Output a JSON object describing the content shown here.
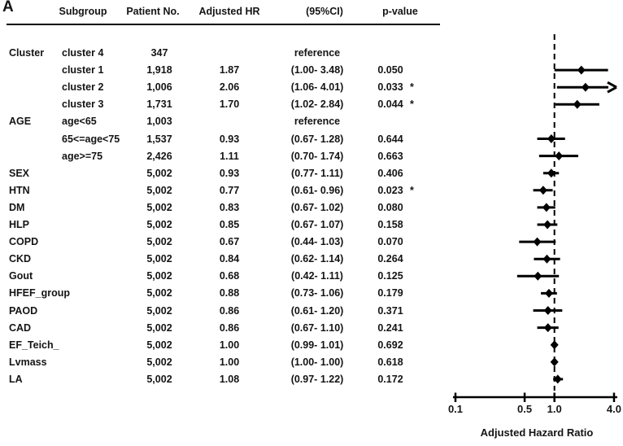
{
  "panel_label": "A",
  "table": {
    "headers": {
      "subgroup": "Subgroup",
      "patient_no": "Patient No.",
      "adjusted_hr": "Adjusted HR",
      "ci": "(95%CI)",
      "p_value": "p-value"
    },
    "rows": [
      {
        "group": "Cluster",
        "subgroup": "cluster 4",
        "n": "347",
        "hr": "",
        "ci": "reference",
        "p": "",
        "star": ""
      },
      {
        "group": "",
        "subgroup": "cluster 1",
        "n": "1,918",
        "hr": "1.87",
        "ci": "(1.00- 3.48)",
        "p": "0.050",
        "star": ""
      },
      {
        "group": "",
        "subgroup": "cluster 2",
        "n": "1,006",
        "hr": "2.06",
        "ci": "(1.06- 4.01)",
        "p": "0.033",
        "star": "*"
      },
      {
        "group": "",
        "subgroup": "cluster 3",
        "n": "1,731",
        "hr": "1.70",
        "ci": "(1.02- 2.84)",
        "p": "0.044",
        "star": "*"
      },
      {
        "group": "AGE",
        "subgroup": "age<65",
        "n": "1,003",
        "hr": "",
        "ci": "reference",
        "p": "",
        "star": ""
      },
      {
        "group": "",
        "subgroup": "65<=age<75",
        "n": "1,537",
        "hr": "0.93",
        "ci": "(0.67- 1.28)",
        "p": "0.644",
        "star": ""
      },
      {
        "group": "",
        "subgroup": "age>=75",
        "n": "2,426",
        "hr": "1.11",
        "ci": "(0.70- 1.74)",
        "p": "0.663",
        "star": ""
      },
      {
        "group": "SEX",
        "subgroup": "",
        "n": "5,002",
        "hr": "0.93",
        "ci": "(0.77- 1.11)",
        "p": "0.406",
        "star": ""
      },
      {
        "group": "HTN",
        "subgroup": "",
        "n": "5,002",
        "hr": "0.77",
        "ci": "(0.61- 0.96)",
        "p": "0.023",
        "star": "*"
      },
      {
        "group": "DM",
        "subgroup": "",
        "n": "5,002",
        "hr": "0.83",
        "ci": "(0.67- 1.02)",
        "p": "0.080",
        "star": ""
      },
      {
        "group": "HLP",
        "subgroup": "",
        "n": "5,002",
        "hr": "0.85",
        "ci": "(0.67- 1.07)",
        "p": "0.158",
        "star": ""
      },
      {
        "group": "COPD",
        "subgroup": "",
        "n": "5,002",
        "hr": "0.67",
        "ci": "(0.44- 1.03)",
        "p": "0.070",
        "star": ""
      },
      {
        "group": "CKD",
        "subgroup": "",
        "n": "5,002",
        "hr": "0.84",
        "ci": "(0.62- 1.14)",
        "p": "0.264",
        "star": ""
      },
      {
        "group": "Gout",
        "subgroup": "",
        "n": "5,002",
        "hr": "0.68",
        "ci": "(0.42- 1.11)",
        "p": "0.125",
        "star": ""
      },
      {
        "group": "HFEF_group",
        "subgroup": "",
        "n": "5,002",
        "hr": "0.88",
        "ci": "(0.73- 1.06)",
        "p": "0.179",
        "star": ""
      },
      {
        "group": "PAOD",
        "subgroup": "",
        "n": "5,002",
        "hr": "0.86",
        "ci": "(0.61- 1.20)",
        "p": "0.371",
        "star": ""
      },
      {
        "group": "CAD",
        "subgroup": "",
        "n": "5,002",
        "hr": "0.86",
        "ci": "(0.67- 1.10)",
        "p": "0.241",
        "star": ""
      },
      {
        "group": "EF_Teich_",
        "subgroup": "",
        "n": "5,002",
        "hr": "1.00",
        "ci": "(0.99- 1.01)",
        "p": "0.692",
        "star": ""
      },
      {
        "group": "Lvmass",
        "subgroup": "",
        "n": "5,002",
        "hr": "1.00",
        "ci": "(1.00- 1.00)",
        "p": "0.618",
        "star": ""
      },
      {
        "group": "LA",
        "subgroup": "",
        "n": "5,002",
        "hr": "1.08",
        "ci": "(0.97- 1.22)",
        "p": "0.172",
        "star": ""
      }
    ]
  },
  "chart_data": {
    "type": "scatter",
    "subtype": "forest-plot",
    "xlabel": "Adjusted Hazard Ratio",
    "x_scale": "log",
    "xlim": [
      0.1,
      4.0
    ],
    "x_ticks": [
      "0.1",
      "0.5",
      "1.0",
      "4.0"
    ],
    "reference_line": 1.0,
    "reference_rows": [
      "cluster 4",
      "age<65"
    ],
    "points": [
      {
        "label": "cluster 1",
        "hr": 1.87,
        "lo": 1.0,
        "hi": 3.48,
        "arrow_right": false
      },
      {
        "label": "cluster 2",
        "hr": 2.06,
        "lo": 1.06,
        "hi": 4.01,
        "arrow_right": true
      },
      {
        "label": "cluster 3",
        "hr": 1.7,
        "lo": 1.02,
        "hi": 2.84,
        "arrow_right": false
      },
      {
        "label": "65<=age<75",
        "hr": 0.93,
        "lo": 0.67,
        "hi": 1.28,
        "arrow_right": false
      },
      {
        "label": "age>=75",
        "hr": 1.11,
        "lo": 0.7,
        "hi": 1.74,
        "arrow_right": false
      },
      {
        "label": "SEX",
        "hr": 0.93,
        "lo": 0.77,
        "hi": 1.11,
        "arrow_right": false
      },
      {
        "label": "HTN",
        "hr": 0.77,
        "lo": 0.61,
        "hi": 0.96,
        "arrow_right": false
      },
      {
        "label": "DM",
        "hr": 0.83,
        "lo": 0.67,
        "hi": 1.02,
        "arrow_right": false
      },
      {
        "label": "HLP",
        "hr": 0.85,
        "lo": 0.67,
        "hi": 1.07,
        "arrow_right": false
      },
      {
        "label": "COPD",
        "hr": 0.67,
        "lo": 0.44,
        "hi": 1.03,
        "arrow_right": false
      },
      {
        "label": "CKD",
        "hr": 0.84,
        "lo": 0.62,
        "hi": 1.14,
        "arrow_right": false
      },
      {
        "label": "Gout",
        "hr": 0.68,
        "lo": 0.42,
        "hi": 1.11,
        "arrow_right": false
      },
      {
        "label": "HFEF_group",
        "hr": 0.88,
        "lo": 0.73,
        "hi": 1.06,
        "arrow_right": false
      },
      {
        "label": "PAOD",
        "hr": 0.86,
        "lo": 0.61,
        "hi": 1.2,
        "arrow_right": false
      },
      {
        "label": "CAD",
        "hr": 0.86,
        "lo": 0.67,
        "hi": 1.1,
        "arrow_right": false
      },
      {
        "label": "EF_Teich_",
        "hr": 1.0,
        "lo": 0.99,
        "hi": 1.01,
        "arrow_right": false
      },
      {
        "label": "Lvmass",
        "hr": 1.0,
        "lo": 1.0,
        "hi": 1.0,
        "arrow_right": false
      },
      {
        "label": "LA",
        "hr": 1.08,
        "lo": 0.97,
        "hi": 1.22,
        "arrow_right": false
      }
    ]
  }
}
